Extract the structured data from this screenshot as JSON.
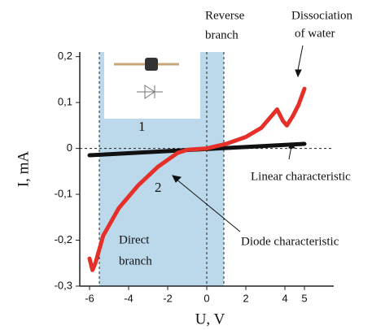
{
  "chart_data": {
    "type": "line",
    "x_label": "U, V",
    "y_label": "I, mA",
    "xlim": [
      -6.5,
      6.5
    ],
    "ylim": [
      -0.3,
      0.21
    ],
    "xticks": [
      -6,
      -4,
      -2,
      0,
      2,
      4,
      5
    ],
    "yticks": [
      {
        "value": 0.2,
        "label": "0,2"
      },
      {
        "value": 0.1,
        "label": "0,1"
      },
      0,
      {
        "value": -0.1,
        "label": "-0,1"
      },
      {
        "value": -0.2,
        "label": "-0,2"
      },
      {
        "value": -0.3,
        "label": "-0,3"
      }
    ],
    "series": [
      {
        "name": "Diode characteristic",
        "label": "2",
        "color": "#e5302a",
        "x": [
          -6,
          -5.85,
          -5.7,
          -5.3,
          -4.5,
          -3.5,
          -2.5,
          -1.5,
          -1,
          0,
          1,
          2,
          2.8,
          3.3,
          3.6,
          3.9,
          4.1,
          4.4,
          4.7,
          5
        ],
        "values": [
          -0.24,
          -0.265,
          -0.25,
          -0.19,
          -0.13,
          -0.08,
          -0.04,
          -0.01,
          -0.003,
          0,
          0.01,
          0.025,
          0.045,
          0.07,
          0.085,
          0.06,
          0.05,
          0.07,
          0.095,
          0.13
        ]
      },
      {
        "name": "Linear characteristic",
        "label": "1",
        "color": "#111111",
        "x": [
          -6,
          5
        ],
        "values": [
          -0.015,
          0.01
        ]
      }
    ],
    "annotations": {
      "reverse_branch": [
        "Reverse",
        "branch"
      ],
      "dissociation": [
        "Dissociation",
        "of water"
      ],
      "direct_branch": [
        "Direct",
        "branch"
      ]
    }
  }
}
